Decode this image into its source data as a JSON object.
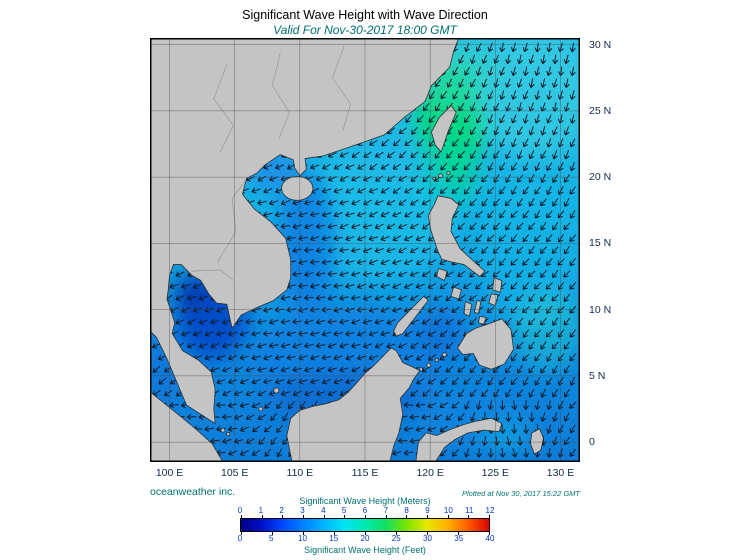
{
  "header": {
    "title": "Significant Wave Height with Wave Direction",
    "subtitle": "Valid For Nov-30-2017 18:00 GMT"
  },
  "map": {
    "x_ticks": [
      "100 E",
      "105 E",
      "110 E",
      "115 E",
      "120 E",
      "125 E",
      "130 E"
    ],
    "y_ticks": [
      "30 N",
      "25 N",
      "20 N",
      "15 N",
      "10 N",
      "5 N",
      "0"
    ]
  },
  "footer": {
    "credit": "oceanweather inc.",
    "plotted_at": "Plotted at Nov 30, 2017 15:22 GMT"
  },
  "colorbar": {
    "title_meters": "Significant Wave Height (Meters)",
    "title_feet": "Significant Wave Height (Feet)",
    "meters_ticks": [
      "0",
      "1",
      "2",
      "3",
      "4",
      "5",
      "6",
      "7",
      "8",
      "9",
      "10",
      "11",
      "12"
    ],
    "feet_ticks": [
      "0",
      "5",
      "10",
      "15",
      "20",
      "25",
      "30",
      "35",
      "40"
    ],
    "gradient": [
      "#000082",
      "#0010c8",
      "#0048ff",
      "#0080ff",
      "#00b4ff",
      "#00e4f2",
      "#00e8b4",
      "#10e060",
      "#78e400",
      "#e8e800",
      "#ffb000",
      "#ff5c00",
      "#dc0000"
    ]
  },
  "chart_data": {
    "type": "map",
    "title": "Significant Wave Height with Wave Direction",
    "valid_time": "Nov-30-2017 18:00 GMT",
    "region": {
      "lon_range": [
        "100 E",
        "130 E"
      ],
      "lat_range": [
        "0",
        "30 N"
      ]
    },
    "scale": {
      "meters_range": [
        0,
        12
      ],
      "feet_range": [
        0,
        40
      ]
    },
    "arrows_meaning": "wave direction",
    "approx_field_values_m": [
      {
        "area": "Luzon Strait / Taiwan waters",
        "wave_height_m": 3
      },
      {
        "area": "Central South China Sea",
        "wave_height_m": 2
      },
      {
        "area": "Philippine Sea east of Luzon",
        "wave_height_m": 2
      },
      {
        "area": "Gulf of Tonkin",
        "wave_height_m": 1.5
      },
      {
        "area": "Southern basin near Borneo",
        "wave_height_m": 1.5
      },
      {
        "area": "Gulf of Thailand",
        "wave_height_m": 0.5
      }
    ]
  }
}
